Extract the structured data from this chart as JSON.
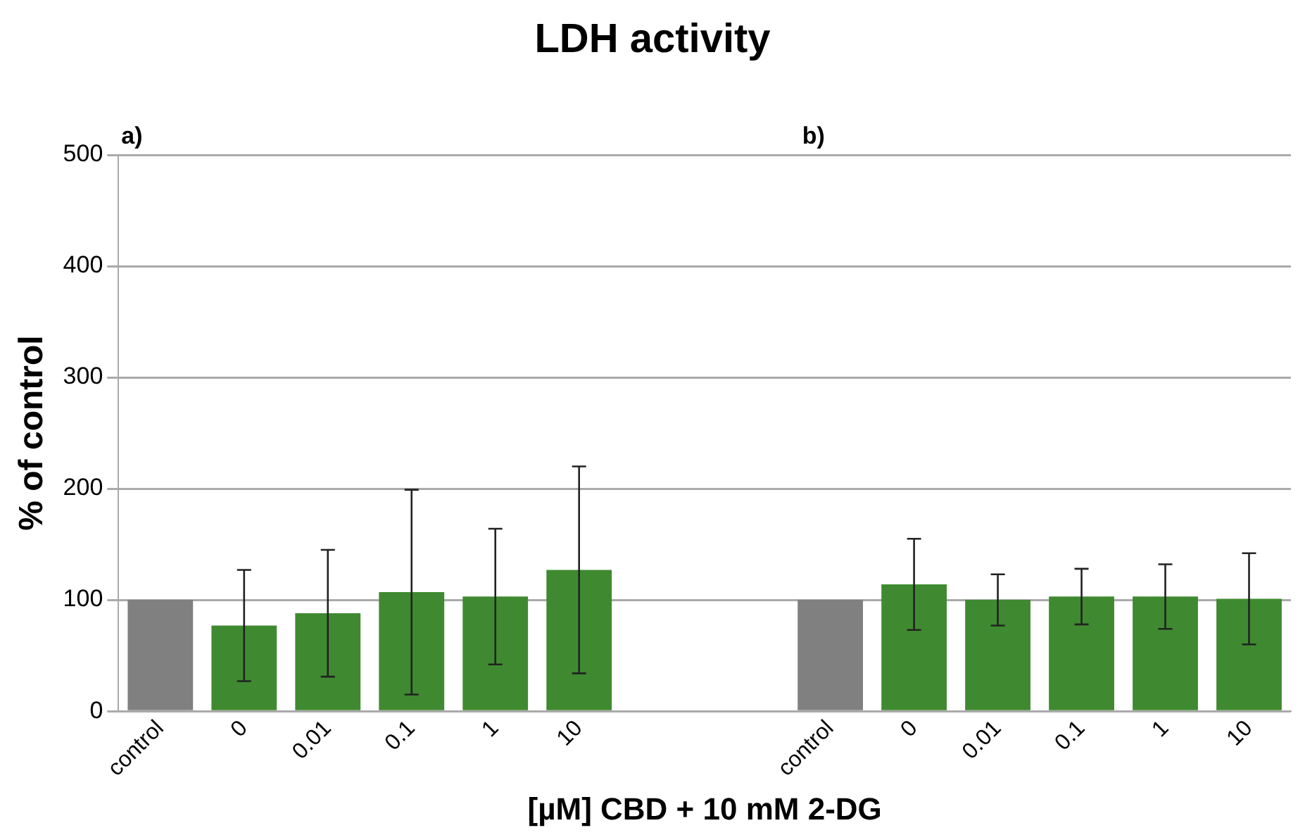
{
  "chart_data": {
    "type": "bar",
    "title": "LDH activity",
    "xlabel": "[µM] CBD + 10 mM 2-DG",
    "ylabel": "% of control",
    "categories": [
      "control",
      "0",
      "0.01",
      "0.1",
      "1",
      "10",
      null,
      null,
      "control",
      "0",
      "0.01",
      "0.1",
      "1",
      "10"
    ],
    "values": [
      100,
      77,
      88,
      107,
      103,
      127,
      null,
      null,
      100,
      114,
      100,
      103,
      103,
      101
    ],
    "errors": [
      null,
      50,
      57,
      92,
      61,
      93,
      null,
      null,
      null,
      41,
      23,
      25,
      29,
      41
    ],
    "colors": [
      "#808080",
      "#3f8a30",
      "#3f8a30",
      "#3f8a30",
      "#3f8a30",
      "#3f8a30",
      "#3f8a30",
      "#3f8a30",
      "#808080",
      "#3f8a30",
      "#3f8a30",
      "#3f8a30",
      "#3f8a30",
      "#3f8a30"
    ],
    "ylim": [
      0,
      500
    ],
    "yticks": [
      0,
      100,
      200,
      300,
      400,
      500
    ],
    "grid": "y",
    "legend": false,
    "annotations": [
      "a)",
      "b)"
    ]
  }
}
